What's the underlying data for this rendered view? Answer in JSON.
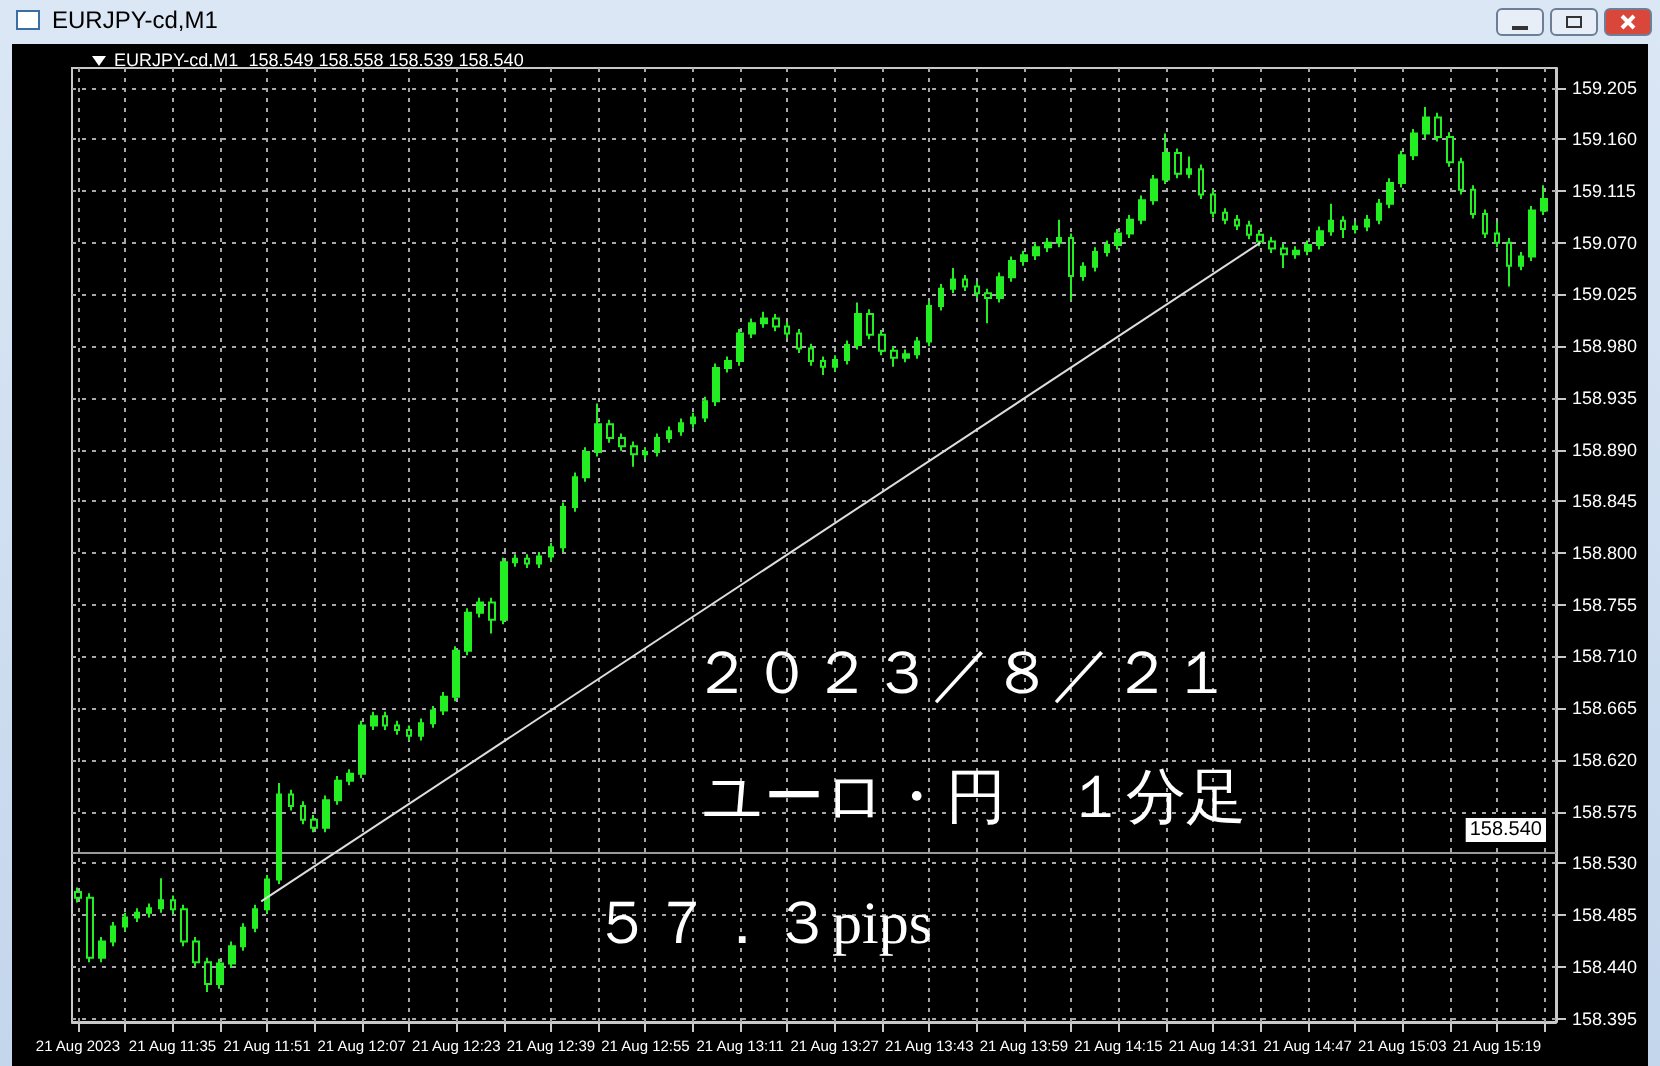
{
  "chart_data": {
    "type": "candlestick",
    "title": "EURJPY-cd,M1",
    "subtitle": "EURJPY-cd,M1  158.549 158.558 158.539 158.540",
    "annotations": [
      "２０２３／８／２１",
      "ユーロ・円　１分足",
      "５７．３pips"
    ],
    "color": "#22ee22",
    "grid": true,
    "x": [
      "2023-08-21T11:19",
      "2023-08-21T11:21",
      "2023-08-21T11:23",
      "2023-08-21T11:25",
      "2023-08-21T11:27",
      "2023-08-21T11:29",
      "2023-08-21T11:31",
      "2023-08-21T11:33",
      "2023-08-21T11:35",
      "2023-08-21T11:37",
      "2023-08-21T11:39",
      "2023-08-21T11:41",
      "2023-08-21T11:43",
      "2023-08-21T11:45",
      "2023-08-21T11:47",
      "2023-08-21T11:49",
      "2023-08-21T11:51",
      "2023-08-21T11:53",
      "2023-08-21T11:55",
      "2023-08-21T11:57",
      "2023-08-21T11:59",
      "2023-08-21T12:01",
      "2023-08-21T12:03",
      "2023-08-21T12:05",
      "2023-08-21T12:07",
      "2023-08-21T12:09",
      "2023-08-21T12:11",
      "2023-08-21T12:13",
      "2023-08-21T12:15",
      "2023-08-21T12:17",
      "2023-08-21T12:19",
      "2023-08-21T12:21",
      "2023-08-21T12:23",
      "2023-08-21T12:25",
      "2023-08-21T12:27",
      "2023-08-21T12:29",
      "2023-08-21T12:31",
      "2023-08-21T12:33",
      "2023-08-21T12:35",
      "2023-08-21T12:37",
      "2023-08-21T12:39",
      "2023-08-21T12:41",
      "2023-08-21T12:43",
      "2023-08-21T12:45",
      "2023-08-21T12:47",
      "2023-08-21T12:49",
      "2023-08-21T12:51",
      "2023-08-21T12:53",
      "2023-08-21T12:55",
      "2023-08-21T12:57",
      "2023-08-21T12:59",
      "2023-08-21T13:01",
      "2023-08-21T13:03",
      "2023-08-21T13:05",
      "2023-08-21T13:07",
      "2023-08-21T13:09",
      "2023-08-21T13:11",
      "2023-08-21T13:13",
      "2023-08-21T13:15",
      "2023-08-21T13:17",
      "2023-08-21T13:19",
      "2023-08-21T13:21",
      "2023-08-21T13:23",
      "2023-08-21T13:25",
      "2023-08-21T13:27",
      "2023-08-21T13:29",
      "2023-08-21T13:31",
      "2023-08-21T13:33",
      "2023-08-21T13:35",
      "2023-08-21T13:37",
      "2023-08-21T13:39",
      "2023-08-21T13:41",
      "2023-08-21T13:43",
      "2023-08-21T13:45",
      "2023-08-21T13:47",
      "2023-08-21T13:49",
      "2023-08-21T13:51",
      "2023-08-21T13:53",
      "2023-08-21T13:55",
      "2023-08-21T13:57",
      "2023-08-21T13:59",
      "2023-08-21T14:01",
      "2023-08-21T14:03",
      "2023-08-21T14:05",
      "2023-08-21T14:07",
      "2023-08-21T14:09",
      "2023-08-21T14:11",
      "2023-08-21T14:13",
      "2023-08-21T14:15",
      "2023-08-21T14:17",
      "2023-08-21T14:19",
      "2023-08-21T14:21",
      "2023-08-21T14:23",
      "2023-08-21T14:25",
      "2023-08-21T14:27",
      "2023-08-21T14:29",
      "2023-08-21T14:31",
      "2023-08-21T14:33",
      "2023-08-21T14:35",
      "2023-08-21T14:37",
      "2023-08-21T14:39",
      "2023-08-21T14:41",
      "2023-08-21T14:43",
      "2023-08-21T14:45",
      "2023-08-21T14:47",
      "2023-08-21T14:49",
      "2023-08-21T14:51",
      "2023-08-21T14:53",
      "2023-08-21T14:55",
      "2023-08-21T14:57",
      "2023-08-21T14:59",
      "2023-08-21T15:01",
      "2023-08-21T15:03",
      "2023-08-21T15:05",
      "2023-08-21T15:07",
      "2023-08-21T15:09",
      "2023-08-21T15:11",
      "2023-08-21T15:13",
      "2023-08-21T15:15",
      "2023-08-21T15:17",
      "2023-08-21T15:19",
      "2023-08-21T15:21",
      "2023-08-21T15:23",
      "2023-08-21T15:25",
      "2023-08-21T15:27"
    ],
    "ohlc": [
      [
        158.505,
        158.509,
        158.496,
        158.5
      ],
      [
        158.5,
        158.504,
        158.444,
        158.448
      ],
      [
        158.448,
        158.466,
        158.444,
        158.462
      ],
      [
        158.462,
        158.479,
        158.458,
        158.475
      ],
      [
        158.475,
        158.487,
        158.471,
        158.483
      ],
      [
        158.483,
        158.491,
        158.479,
        158.487
      ],
      [
        158.487,
        158.495,
        158.483,
        158.491
      ],
      [
        158.491,
        158.517,
        158.487,
        158.498
      ],
      [
        158.498,
        158.502,
        158.486,
        158.49
      ],
      [
        158.49,
        158.494,
        158.458,
        158.462
      ],
      [
        158.462,
        158.466,
        158.44,
        158.444
      ],
      [
        158.444,
        158.448,
        158.418,
        158.425
      ],
      [
        158.425,
        158.447,
        158.421,
        158.443
      ],
      [
        158.443,
        158.462,
        158.439,
        158.458
      ],
      [
        158.458,
        158.478,
        158.454,
        158.474
      ],
      [
        158.474,
        158.494,
        158.47,
        158.49
      ],
      [
        158.49,
        158.52,
        158.486,
        158.516
      ],
      [
        158.516,
        158.6,
        158.512,
        158.59
      ],
      [
        158.59,
        158.594,
        158.576,
        158.58
      ],
      [
        158.58,
        158.584,
        158.564,
        158.568
      ],
      [
        158.568,
        158.572,
        158.557,
        158.561
      ],
      [
        158.561,
        158.589,
        158.557,
        158.585
      ],
      [
        158.585,
        158.606,
        158.581,
        158.602
      ],
      [
        158.602,
        158.612,
        158.598,
        158.608
      ],
      [
        158.608,
        158.654,
        158.604,
        158.65
      ],
      [
        158.65,
        158.662,
        158.646,
        158.658
      ],
      [
        158.658,
        158.662,
        158.646,
        158.65
      ],
      [
        158.65,
        158.654,
        158.642,
        158.646
      ],
      [
        158.646,
        158.65,
        158.637,
        158.641
      ],
      [
        158.641,
        158.656,
        158.637,
        158.652
      ],
      [
        158.652,
        158.667,
        158.648,
        158.663
      ],
      [
        158.663,
        158.679,
        158.659,
        158.675
      ],
      [
        158.675,
        158.719,
        158.671,
        158.715
      ],
      [
        158.715,
        158.752,
        158.711,
        158.748
      ],
      [
        158.748,
        158.761,
        158.744,
        158.757
      ],
      [
        158.757,
        158.761,
        158.73,
        158.742
      ],
      [
        158.742,
        158.796,
        158.738,
        158.792
      ],
      [
        158.792,
        158.799,
        158.788,
        158.795
      ],
      [
        158.795,
        158.799,
        158.787,
        158.791
      ],
      [
        158.791,
        158.801,
        158.787,
        158.797
      ],
      [
        158.797,
        158.809,
        158.793,
        158.805
      ],
      [
        158.805,
        158.844,
        158.801,
        158.84
      ],
      [
        158.84,
        158.87,
        158.836,
        158.866
      ],
      [
        158.866,
        158.892,
        158.862,
        158.888
      ],
      [
        158.888,
        158.93,
        158.884,
        158.912
      ],
      [
        158.912,
        158.916,
        158.896,
        158.9
      ],
      [
        158.9,
        158.904,
        158.889,
        158.893
      ],
      [
        158.893,
        158.897,
        158.875,
        158.886
      ],
      [
        158.886,
        158.892,
        158.882,
        158.888
      ],
      [
        158.888,
        158.904,
        158.884,
        158.9
      ],
      [
        158.9,
        158.91,
        158.896,
        158.906
      ],
      [
        158.906,
        158.917,
        158.902,
        158.913
      ],
      [
        158.913,
        158.922,
        158.909,
        158.918
      ],
      [
        158.918,
        158.936,
        158.914,
        158.932
      ],
      [
        158.932,
        158.965,
        158.928,
        158.961
      ],
      [
        158.961,
        158.971,
        158.957,
        158.967
      ],
      [
        158.967,
        158.995,
        158.963,
        158.991
      ],
      [
        158.991,
        159.004,
        158.987,
        159.0
      ],
      [
        159.0,
        159.01,
        158.996,
        159.004
      ],
      [
        159.004,
        159.008,
        158.993,
        158.997
      ],
      [
        158.997,
        159.001,
        158.987,
        158.991
      ],
      [
        158.991,
        158.995,
        158.974,
        158.978
      ],
      [
        158.978,
        158.982,
        158.963,
        158.967
      ],
      [
        158.967,
        158.971,
        158.955,
        158.962
      ],
      [
        158.962,
        158.972,
        158.958,
        158.968
      ],
      [
        158.968,
        158.985,
        158.964,
        158.981
      ],
      [
        158.981,
        159.018,
        158.977,
        159.008
      ],
      [
        159.008,
        159.012,
        158.986,
        158.99
      ],
      [
        158.99,
        158.994,
        158.972,
        158.976
      ],
      [
        158.976,
        158.98,
        158.962,
        158.97
      ],
      [
        158.97,
        158.977,
        158.966,
        158.973
      ],
      [
        158.973,
        158.988,
        158.969,
        158.984
      ],
      [
        158.984,
        159.019,
        158.98,
        159.015
      ],
      [
        159.015,
        159.034,
        159.011,
        159.03
      ],
      [
        159.03,
        159.048,
        159.026,
        159.038
      ],
      [
        159.038,
        159.042,
        159.028,
        159.032
      ],
      [
        159.032,
        159.036,
        159.022,
        159.026
      ],
      [
        159.026,
        159.03,
        159.0,
        159.022
      ],
      [
        159.022,
        159.044,
        159.018,
        159.04
      ],
      [
        159.04,
        159.058,
        159.036,
        159.054
      ],
      [
        159.054,
        159.063,
        159.05,
        159.059
      ],
      [
        159.059,
        159.07,
        159.055,
        159.066
      ],
      [
        159.066,
        159.074,
        159.062,
        159.07
      ],
      [
        159.07,
        159.09,
        159.066,
        159.074
      ],
      [
        159.074,
        159.078,
        159.02,
        159.041
      ],
      [
        159.041,
        159.053,
        159.037,
        159.049
      ],
      [
        159.049,
        159.066,
        159.045,
        159.062
      ],
      [
        159.062,
        159.072,
        159.058,
        159.068
      ],
      [
        159.068,
        159.082,
        159.064,
        159.078
      ],
      [
        159.078,
        159.094,
        159.074,
        159.09
      ],
      [
        159.09,
        159.111,
        159.086,
        159.107
      ],
      [
        159.107,
        159.129,
        159.103,
        159.125
      ],
      [
        159.125,
        159.165,
        159.121,
        159.148
      ],
      [
        159.148,
        159.152,
        159.126,
        159.13
      ],
      [
        159.13,
        159.145,
        159.126,
        159.134
      ],
      [
        159.134,
        159.138,
        159.108,
        159.112
      ],
      [
        159.112,
        159.116,
        159.092,
        159.096
      ],
      [
        159.096,
        159.1,
        159.086,
        159.09
      ],
      [
        159.09,
        159.094,
        159.081,
        159.085
      ],
      [
        159.085,
        159.089,
        159.073,
        159.077
      ],
      [
        159.077,
        159.081,
        159.067,
        159.071
      ],
      [
        159.071,
        159.075,
        159.061,
        159.065
      ],
      [
        159.065,
        159.069,
        159.048,
        159.06
      ],
      [
        159.06,
        159.067,
        159.056,
        159.063
      ],
      [
        159.063,
        159.072,
        159.059,
        159.068
      ],
      [
        159.068,
        159.084,
        159.064,
        159.08
      ],
      [
        159.08,
        159.104,
        159.076,
        159.089
      ],
      [
        159.089,
        159.093,
        159.074,
        159.082
      ],
      [
        159.082,
        159.088,
        159.078,
        159.084
      ],
      [
        159.084,
        159.094,
        159.08,
        159.09
      ],
      [
        159.09,
        159.108,
        159.086,
        159.104
      ],
      [
        159.104,
        159.126,
        159.1,
        159.122
      ],
      [
        159.122,
        159.15,
        159.118,
        159.146
      ],
      [
        159.146,
        159.169,
        159.142,
        159.165
      ],
      [
        159.165,
        159.188,
        159.161,
        159.179
      ],
      [
        159.179,
        159.183,
        159.158,
        159.162
      ],
      [
        159.162,
        159.166,
        159.136,
        159.14
      ],
      [
        159.14,
        159.144,
        159.112,
        159.116
      ],
      [
        159.116,
        159.12,
        159.091,
        159.095
      ],
      [
        159.095,
        159.099,
        159.074,
        159.078
      ],
      [
        159.078,
        159.088,
        159.066,
        159.07
      ],
      [
        159.07,
        159.074,
        159.032,
        159.05
      ],
      [
        159.05,
        159.062,
        159.046,
        159.058
      ],
      [
        159.058,
        159.102,
        159.054,
        159.098
      ],
      [
        159.098,
        159.12,
        159.094,
        159.108
      ]
    ],
    "series": [
      {
        "type": "line",
        "color": "#dddddd",
        "x": [
          "2023-08-21T11:50",
          "2023-08-21T14:39"
        ],
        "values": [
          158.497,
          159.07
        ]
      }
    ],
    "ref_lines": [
      {
        "axis": "y",
        "value": 158.54,
        "label": "158.540",
        "color": "#9a9a9a"
      }
    ],
    "xlim": [
      "2023-08-21T11:18",
      "2023-08-21T15:29"
    ],
    "xticks": [
      {
        "value": "2023-08-21T11:19",
        "label": "21 Aug 2023"
      },
      {
        "value": "2023-08-21T11:27",
        "label": null
      },
      {
        "value": "2023-08-21T11:35",
        "label": "21 Aug 11:35"
      },
      {
        "value": "2023-08-21T11:43",
        "label": null
      },
      {
        "value": "2023-08-21T11:51",
        "label": "21 Aug 11:51"
      },
      {
        "value": "2023-08-21T11:59",
        "label": null
      },
      {
        "value": "2023-08-21T12:07",
        "label": "21 Aug 12:07"
      },
      {
        "value": "2023-08-21T12:15",
        "label": null
      },
      {
        "value": "2023-08-21T12:23",
        "label": "21 Aug 12:23"
      },
      {
        "value": "2023-08-21T12:31",
        "label": null
      },
      {
        "value": "2023-08-21T12:39",
        "label": "21 Aug 12:39"
      },
      {
        "value": "2023-08-21T12:47",
        "label": null
      },
      {
        "value": "2023-08-21T12:55",
        "label": "21 Aug 12:55"
      },
      {
        "value": "2023-08-21T13:03",
        "label": null
      },
      {
        "value": "2023-08-21T13:11",
        "label": "21 Aug 13:11"
      },
      {
        "value": "2023-08-21T13:19",
        "label": null
      },
      {
        "value": "2023-08-21T13:27",
        "label": "21 Aug 13:27"
      },
      {
        "value": "2023-08-21T13:35",
        "label": null
      },
      {
        "value": "2023-08-21T13:43",
        "label": "21 Aug 13:43"
      },
      {
        "value": "2023-08-21T13:51",
        "label": null
      },
      {
        "value": "2023-08-21T13:59",
        "label": "21 Aug 13:59"
      },
      {
        "value": "2023-08-21T14:07",
        "label": null
      },
      {
        "value": "2023-08-21T14:15",
        "label": "21 Aug 14:15"
      },
      {
        "value": "2023-08-21T14:23",
        "label": null
      },
      {
        "value": "2023-08-21T14:31",
        "label": "21 Aug 14:31"
      },
      {
        "value": "2023-08-21T14:39",
        "label": null
      },
      {
        "value": "2023-08-21T14:47",
        "label": "21 Aug 14:47"
      },
      {
        "value": "2023-08-21T14:55",
        "label": null
      },
      {
        "value": "2023-08-21T15:03",
        "label": "21 Aug 15:03"
      },
      {
        "value": "2023-08-21T15:11",
        "label": null
      },
      {
        "value": "2023-08-21T15:19",
        "label": "21 Aug 15:19"
      },
      {
        "value": "2023-08-21T15:27",
        "label": null
      }
    ],
    "ylim": [
      158.392,
      159.222
    ],
    "yticks": [
      158.395,
      {
        "value": 158.44,
        "label": "158.440"
      },
      158.485,
      {
        "value": 158.53,
        "label": "158.530"
      },
      158.575,
      {
        "value": 158.62,
        "label": "158.620"
      },
      158.665,
      {
        "value": 158.71,
        "label": "158.710"
      },
      158.755,
      {
        "value": 158.8,
        "label": "158.800"
      },
      158.845,
      {
        "value": 158.89,
        "label": "158.890"
      },
      158.935,
      {
        "value": 158.98,
        "label": "158.980"
      },
      159.025,
      {
        "value": 159.07,
        "label": "159.070"
      },
      159.115,
      {
        "value": 159.16,
        "label": "159.160"
      },
      159.205
    ]
  }
}
